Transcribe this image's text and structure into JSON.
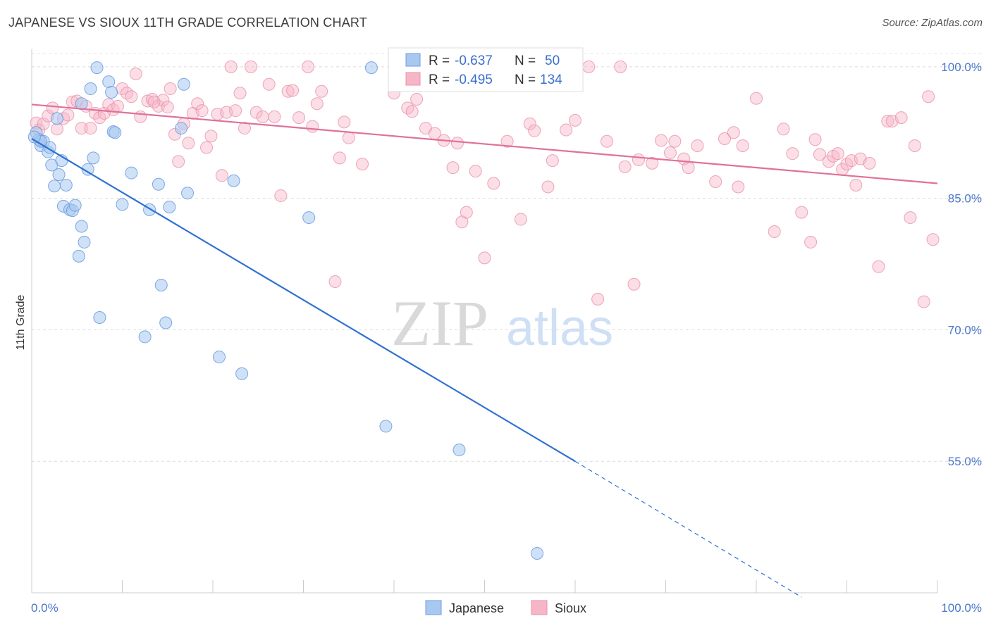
{
  "header": {
    "title": "JAPANESE VS SIOUX 11TH GRADE CORRELATION CHART",
    "source": "Source: ZipAtlas.com"
  },
  "watermark": {
    "zip": "ZIP",
    "atlas": "atlas"
  },
  "legend": {
    "rows": [
      {
        "r_label": "R =",
        "r_value": "-0.637",
        "n_label": "N =",
        "n_value": "50",
        "color": "#a8c8f0",
        "stroke": "#6f9ee0"
      },
      {
        "r_label": "R =",
        "r_value": "-0.495",
        "n_label": "N =",
        "n_value": "134",
        "color": "#f7b6c8",
        "stroke": "#e890aa"
      }
    ]
  },
  "chart_data": {
    "type": "scatter",
    "title": "JAPANESE VS SIOUX 11TH GRADE CORRELATION CHART",
    "xlabel": "",
    "ylabel": "11th Grade",
    "xlim": [
      0,
      100
    ],
    "ylim": [
      40,
      102
    ],
    "x_tick_labels": [
      "0.0%",
      "100.0%"
    ],
    "y_tick_labels": [
      "100.0%",
      "85.0%",
      "70.0%",
      "55.0%"
    ],
    "y_ticks": [
      100,
      85,
      70,
      55
    ],
    "grid": "horizontal dashed",
    "legend_position": "top-center",
    "colors": {
      "japanese": "#6f9ee0",
      "japanese_fill": "#a8c8f0",
      "japanese_line": "#2f72d2",
      "sioux": "#e890aa",
      "sioux_fill": "#f7b6c8",
      "sioux_line": "#e0719a"
    },
    "series": [
      {
        "name": "Japanese",
        "trend": {
          "x0": 0,
          "y0": 91.8,
          "x1": 60,
          "y1": 55.0,
          "dash_to_x": 85,
          "dash_to_y": 39.5
        },
        "points": [
          [
            0.5,
            92.5
          ],
          [
            0.8,
            91.7
          ],
          [
            1.0,
            91.0
          ],
          [
            1.3,
            91.5
          ],
          [
            1.8,
            90.3
          ],
          [
            2.0,
            90.8
          ],
          [
            2.2,
            88.8
          ],
          [
            2.5,
            86.4
          ],
          [
            2.8,
            94.1
          ],
          [
            3.0,
            87.7
          ],
          [
            3.3,
            89.3
          ],
          [
            3.5,
            84.1
          ],
          [
            3.8,
            86.5
          ],
          [
            4.2,
            83.7
          ],
          [
            4.5,
            83.6
          ],
          [
            4.8,
            84.2
          ],
          [
            5.2,
            78.4
          ],
          [
            5.5,
            81.8
          ],
          [
            5.8,
            80.0
          ],
          [
            6.2,
            88.3
          ],
          [
            6.5,
            97.5
          ],
          [
            6.8,
            89.6
          ],
          [
            7.2,
            99.9
          ],
          [
            7.5,
            71.4
          ],
          [
            8.5,
            98.3
          ],
          [
            8.8,
            97.1
          ],
          [
            9.0,
            92.6
          ],
          [
            9.2,
            92.5
          ],
          [
            10.0,
            84.3
          ],
          [
            11.0,
            87.9
          ],
          [
            12.5,
            69.2
          ],
          [
            13.0,
            83.7
          ],
          [
            14.0,
            86.6
          ],
          [
            14.3,
            75.1
          ],
          [
            14.8,
            70.8
          ],
          [
            15.2,
            84.0
          ],
          [
            16.5,
            93.0
          ],
          [
            16.8,
            98.0
          ],
          [
            17.2,
            85.6
          ],
          [
            20.7,
            66.9
          ],
          [
            22.3,
            87.0
          ],
          [
            23.2,
            65.0
          ],
          [
            30.6,
            82.8
          ],
          [
            37.5,
            99.9
          ],
          [
            39.1,
            59.0
          ],
          [
            47.2,
            56.3
          ],
          [
            55.8,
            44.5
          ],
          [
            5.5,
            95.8
          ],
          [
            1.0,
            91.5
          ],
          [
            0.3,
            92.0
          ]
        ]
      },
      {
        "name": "Sioux",
        "trend": {
          "x0": 0,
          "y0": 95.7,
          "x1": 100,
          "y1": 86.7
        },
        "points": [
          [
            0.5,
            93.6
          ],
          [
            0.8,
            92.8
          ],
          [
            1.3,
            93.5
          ],
          [
            1.8,
            94.4
          ],
          [
            2.3,
            95.3
          ],
          [
            2.8,
            92.9
          ],
          [
            3.5,
            94.1
          ],
          [
            4.0,
            94.5
          ],
          [
            4.5,
            96.0
          ],
          [
            5.0,
            96.1
          ],
          [
            5.5,
            93.0
          ],
          [
            6.0,
            95.5
          ],
          [
            6.5,
            93.0
          ],
          [
            7.0,
            94.7
          ],
          [
            7.5,
            94.2
          ],
          [
            8.0,
            94.7
          ],
          [
            8.5,
            95.7
          ],
          [
            9.0,
            95.1
          ],
          [
            9.5,
            95.5
          ],
          [
            10.0,
            97.5
          ],
          [
            10.5,
            97.0
          ],
          [
            11.0,
            96.6
          ],
          [
            11.5,
            99.2
          ],
          [
            12.0,
            94.3
          ],
          [
            12.8,
            96.1
          ],
          [
            13.3,
            96.3
          ],
          [
            14.0,
            95.5
          ],
          [
            14.5,
            96.2
          ],
          [
            15.0,
            95.4
          ],
          [
            15.3,
            97.5
          ],
          [
            15.8,
            92.3
          ],
          [
            16.2,
            89.2
          ],
          [
            16.8,
            93.5
          ],
          [
            17.3,
            91.3
          ],
          [
            17.8,
            94.7
          ],
          [
            18.3,
            95.8
          ],
          [
            18.8,
            95.0
          ],
          [
            19.3,
            90.8
          ],
          [
            19.8,
            92.1
          ],
          [
            20.5,
            94.6
          ],
          [
            21.0,
            87.6
          ],
          [
            21.5,
            94.8
          ],
          [
            22.0,
            100.0
          ],
          [
            22.5,
            95.0
          ],
          [
            23.0,
            97.0
          ],
          [
            23.5,
            93.0
          ],
          [
            24.2,
            100.0
          ],
          [
            24.8,
            94.8
          ],
          [
            25.5,
            94.3
          ],
          [
            26.2,
            98.0
          ],
          [
            26.8,
            94.3
          ],
          [
            27.5,
            85.3
          ],
          [
            28.3,
            97.2
          ],
          [
            28.8,
            97.3
          ],
          [
            29.5,
            94.2
          ],
          [
            30.5,
            100.0
          ],
          [
            31.0,
            93.2
          ],
          [
            31.5,
            95.8
          ],
          [
            32.0,
            97.2
          ],
          [
            33.5,
            75.5
          ],
          [
            34.0,
            89.6
          ],
          [
            34.5,
            93.7
          ],
          [
            35.0,
            91.9
          ],
          [
            36.5,
            88.9
          ],
          [
            40.0,
            97.0
          ],
          [
            41.5,
            95.3
          ],
          [
            42.0,
            94.9
          ],
          [
            42.5,
            96.3
          ],
          [
            43.5,
            93.0
          ],
          [
            44.5,
            92.4
          ],
          [
            45.5,
            91.6
          ],
          [
            46.5,
            88.5
          ],
          [
            47.0,
            91.3
          ],
          [
            47.5,
            82.3
          ],
          [
            48.0,
            83.4
          ],
          [
            49.0,
            88.1
          ],
          [
            50.0,
            78.2
          ],
          [
            51.0,
            86.7
          ],
          [
            52.5,
            91.5
          ],
          [
            54.0,
            82.6
          ],
          [
            55.0,
            93.5
          ],
          [
            55.5,
            92.7
          ],
          [
            57.0,
            86.3
          ],
          [
            57.5,
            89.3
          ],
          [
            59.0,
            92.8
          ],
          [
            60.0,
            93.9
          ],
          [
            61.5,
            100.0
          ],
          [
            62.5,
            73.5
          ],
          [
            63.5,
            91.5
          ],
          [
            65.0,
            100.0
          ],
          [
            65.5,
            88.6
          ],
          [
            66.5,
            75.2
          ],
          [
            67.0,
            89.4
          ],
          [
            68.5,
            89.0
          ],
          [
            69.5,
            91.6
          ],
          [
            70.5,
            90.2
          ],
          [
            71.0,
            91.5
          ],
          [
            72.0,
            89.5
          ],
          [
            72.5,
            88.5
          ],
          [
            73.5,
            91.0
          ],
          [
            75.5,
            86.9
          ],
          [
            76.5,
            91.8
          ],
          [
            77.5,
            92.5
          ],
          [
            78.0,
            86.3
          ],
          [
            78.5,
            91.0
          ],
          [
            80.0,
            96.4
          ],
          [
            82.0,
            81.2
          ],
          [
            83.0,
            92.9
          ],
          [
            84.0,
            90.1
          ],
          [
            85.0,
            83.4
          ],
          [
            86.0,
            80.0
          ],
          [
            86.5,
            91.7
          ],
          [
            87.0,
            90.0
          ],
          [
            88.0,
            89.2
          ],
          [
            88.5,
            89.8
          ],
          [
            89.0,
            90.1
          ],
          [
            89.5,
            88.3
          ],
          [
            90.0,
            88.9
          ],
          [
            90.5,
            89.3
          ],
          [
            91.0,
            86.5
          ],
          [
            91.5,
            89.5
          ],
          [
            92.5,
            89.0
          ],
          [
            93.5,
            77.2
          ],
          [
            94.5,
            93.8
          ],
          [
            95.0,
            93.8
          ],
          [
            96.0,
            94.2
          ],
          [
            97.5,
            91.0
          ],
          [
            97.0,
            82.8
          ],
          [
            98.5,
            73.2
          ],
          [
            99.0,
            96.6
          ],
          [
            99.5,
            80.3
          ],
          [
            13.5,
            96.0
          ]
        ]
      }
    ]
  },
  "bottom_legend": [
    {
      "label": "Japanese",
      "color": "#a8c8f0",
      "stroke": "#6f9ee0"
    },
    {
      "label": "Sioux",
      "color": "#f7b6c8",
      "stroke": "#e890aa"
    }
  ]
}
